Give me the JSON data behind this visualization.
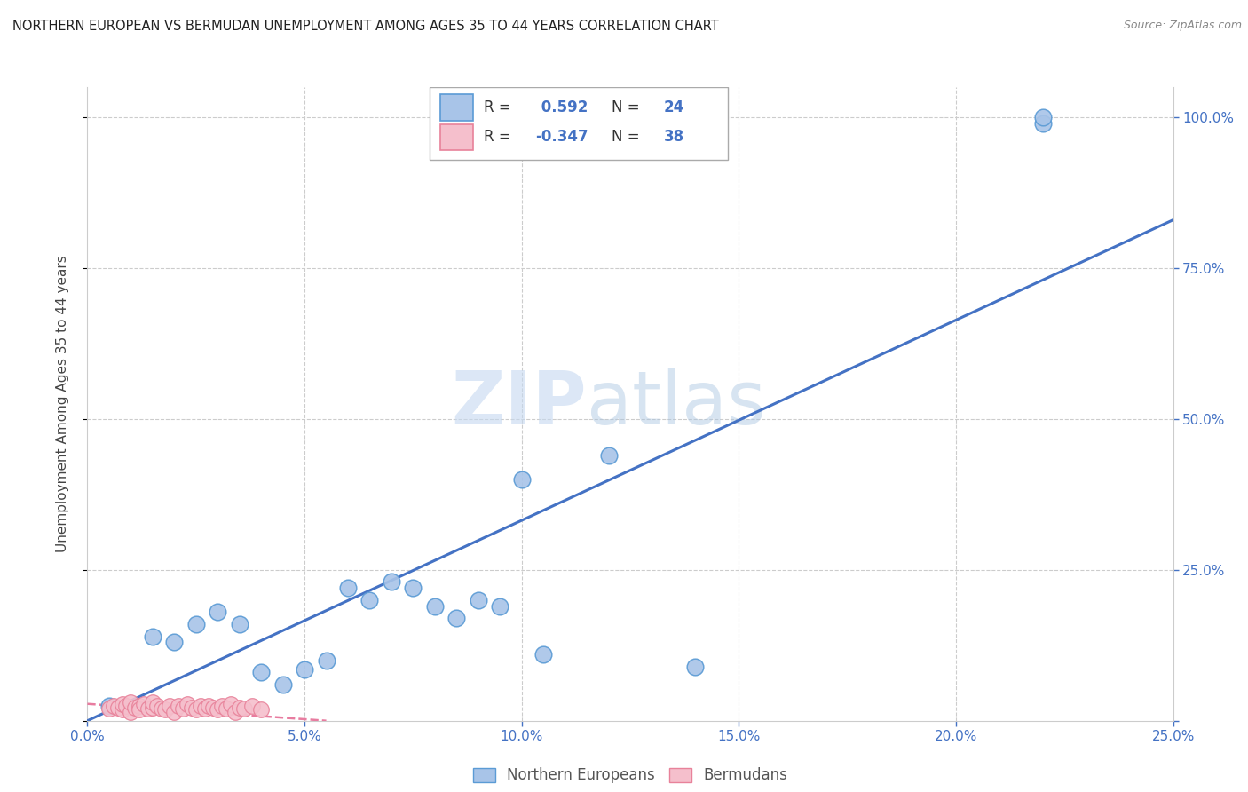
{
  "title": "NORTHERN EUROPEAN VS BERMUDAN UNEMPLOYMENT AMONG AGES 35 TO 44 YEARS CORRELATION CHART",
  "source": "Source: ZipAtlas.com",
  "ylabel": "Unemployment Among Ages 35 to 44 years",
  "xlim": [
    0.0,
    0.25
  ],
  "ylim": [
    0.0,
    1.05
  ],
  "xticks": [
    0.0,
    0.05,
    0.1,
    0.15,
    0.2,
    0.25
  ],
  "yticks": [
    0.0,
    0.25,
    0.5,
    0.75,
    1.0
  ],
  "xticklabels": [
    "0.0%",
    "5.0%",
    "10.0%",
    "15.0%",
    "20.0%",
    "25.0%"
  ],
  "yticklabels_right": [
    "",
    "25.0%",
    "50.0%",
    "75.0%",
    "100.0%"
  ],
  "blue_R": "0.592",
  "blue_N": "24",
  "pink_R": "-0.347",
  "pink_N": "38",
  "blue_dot_color": "#a8c4e8",
  "blue_edge_color": "#5b9bd5",
  "pink_dot_color": "#f5bfcc",
  "pink_edge_color": "#e8829a",
  "blue_line_color": "#4472c4",
  "pink_line_color": "#e87ca0",
  "legend_label_blue": "Northern Europeans",
  "legend_label_pink": "Bermudans",
  "watermark_zip": "ZIP",
  "watermark_atlas": "atlas",
  "background_color": "#ffffff",
  "grid_color": "#cccccc",
  "title_color": "#222222",
  "tick_color": "#4472c4",
  "ylabel_color": "#444444",
  "blue_scatter_x": [
    0.005,
    0.015,
    0.02,
    0.025,
    0.03,
    0.035,
    0.04,
    0.045,
    0.05,
    0.055,
    0.06,
    0.065,
    0.07,
    0.075,
    0.08,
    0.085,
    0.09,
    0.1,
    0.12,
    0.14,
    0.095,
    0.105,
    0.22,
    0.22
  ],
  "blue_scatter_y": [
    0.025,
    0.14,
    0.13,
    0.16,
    0.18,
    0.16,
    0.08,
    0.06,
    0.085,
    0.1,
    0.22,
    0.2,
    0.23,
    0.22,
    0.19,
    0.17,
    0.2,
    0.4,
    0.44,
    0.09,
    0.19,
    0.11,
    0.99,
    1.0
  ],
  "pink_scatter_x": [
    0.005,
    0.006,
    0.007,
    0.008,
    0.008,
    0.009,
    0.01,
    0.01,
    0.011,
    0.012,
    0.012,
    0.013,
    0.014,
    0.015,
    0.015,
    0.016,
    0.017,
    0.018,
    0.019,
    0.02,
    0.021,
    0.022,
    0.023,
    0.024,
    0.025,
    0.026,
    0.027,
    0.028,
    0.029,
    0.03,
    0.031,
    0.032,
    0.033,
    0.034,
    0.035,
    0.036,
    0.038,
    0.04
  ],
  "pink_scatter_y": [
    0.02,
    0.025,
    0.022,
    0.018,
    0.028,
    0.025,
    0.015,
    0.03,
    0.022,
    0.025,
    0.018,
    0.028,
    0.02,
    0.022,
    0.03,
    0.025,
    0.02,
    0.018,
    0.025,
    0.015,
    0.025,
    0.02,
    0.028,
    0.022,
    0.018,
    0.025,
    0.02,
    0.025,
    0.022,
    0.018,
    0.025,
    0.02,
    0.028,
    0.015,
    0.022,
    0.02,
    0.025,
    0.018
  ],
  "blue_trend_x": [
    0.0,
    0.25
  ],
  "blue_trend_y": [
    0.0,
    0.83
  ],
  "pink_trend_x": [
    0.0,
    0.055
  ],
  "pink_trend_y": [
    0.028,
    0.0
  ]
}
